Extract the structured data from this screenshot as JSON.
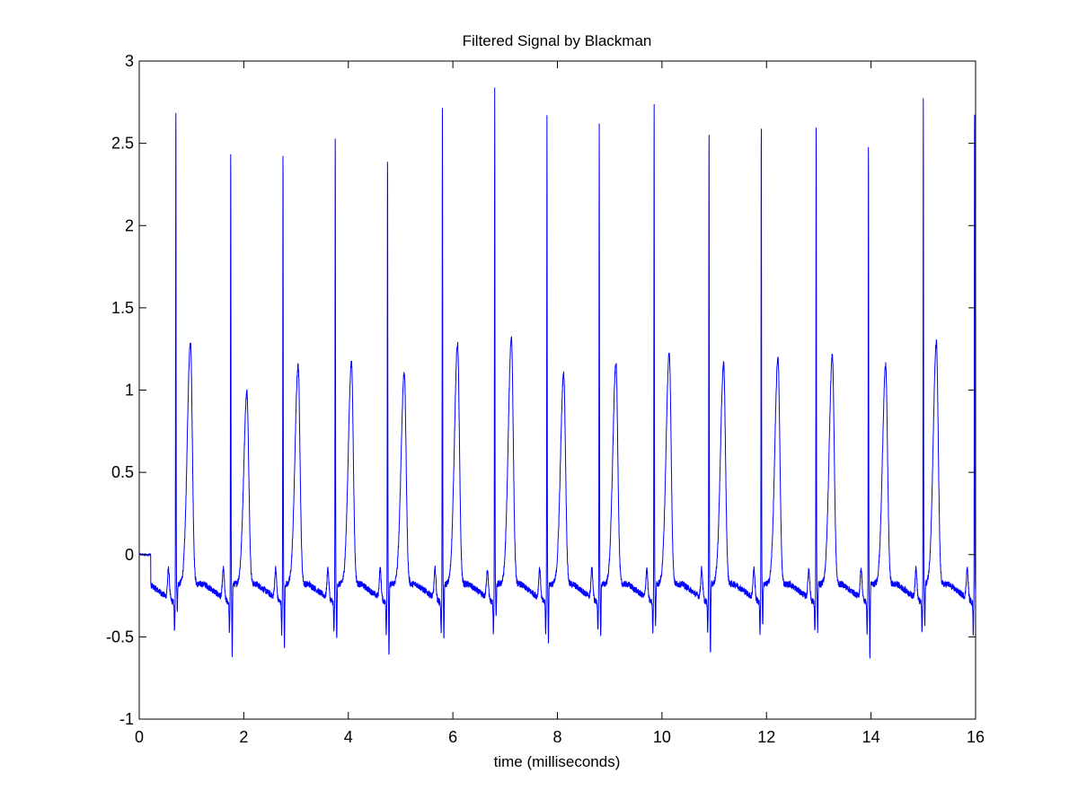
{
  "chart_data": {
    "type": "line",
    "title": "Filtered Signal by Blackman",
    "xlabel": "time (milliseconds)",
    "ylabel": "",
    "xlim": [
      0,
      16
    ],
    "ylim": [
      -1,
      3
    ],
    "xticks": [
      0,
      2,
      4,
      6,
      8,
      10,
      12,
      14,
      16
    ],
    "xtick_labels": [
      "0",
      "2",
      "4",
      "6",
      "8",
      "10",
      "12",
      "14",
      "16"
    ],
    "yticks": [
      -1,
      -0.5,
      0,
      0.5,
      1,
      1.5,
      2,
      2.5,
      3
    ],
    "ytick_labels": [
      "-1",
      "-0.5",
      "0",
      "0.5",
      "1",
      "1.5",
      "2",
      "2.5",
      "3"
    ],
    "grid": false,
    "line_color": "#0000ff",
    "series": [
      {
        "r_peak_times": [
          0.7,
          1.75,
          2.75,
          3.75,
          4.75,
          5.8,
          6.8,
          7.8,
          8.8,
          9.85,
          10.9,
          11.9,
          12.95,
          13.95,
          15.0,
          15.98
        ],
        "r_peak_values": [
          2.81,
          2.55,
          2.55,
          2.67,
          2.52,
          2.7,
          2.82,
          2.64,
          2.62,
          2.77,
          2.64,
          2.71,
          2.71,
          2.59,
          2.75,
          2.79
        ],
        "t_wave_times": [
          0.98,
          2.06,
          3.04,
          4.06,
          5.07,
          6.09,
          7.12,
          8.12,
          9.12,
          10.14,
          11.18,
          12.22,
          13.26,
          14.28,
          15.25
        ],
        "t_wave_values": [
          1.23,
          0.92,
          1.08,
          1.1,
          1.04,
          1.21,
          1.25,
          1.03,
          1.09,
          1.16,
          1.09,
          1.13,
          1.14,
          1.08,
          1.22
        ],
        "s_trough_values": [
          -0.3,
          -0.59,
          -0.53,
          -0.49,
          -0.59,
          -0.48,
          -0.35,
          -0.5,
          -0.47,
          -0.4,
          -0.58,
          -0.4,
          -0.44,
          -0.6,
          -0.39,
          -0.35
        ],
        "signal_start": [
          0.0,
          0.0
        ],
        "signal_end_time": 16.0
      }
    ]
  }
}
